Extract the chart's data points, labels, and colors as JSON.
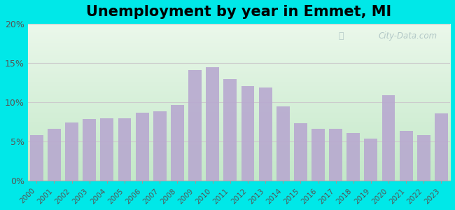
{
  "title": "Unemployment by year in Emmet, MI",
  "years": [
    2000,
    2001,
    2002,
    2003,
    2004,
    2005,
    2006,
    2007,
    2008,
    2009,
    2010,
    2011,
    2012,
    2013,
    2014,
    2015,
    2016,
    2017,
    2018,
    2019,
    2020,
    2021,
    2022,
    2023
  ],
  "values": [
    5.8,
    6.6,
    7.4,
    7.9,
    8.0,
    8.0,
    8.7,
    8.9,
    9.7,
    14.1,
    14.5,
    13.0,
    12.1,
    11.9,
    9.5,
    7.3,
    6.6,
    6.6,
    6.1,
    5.4,
    10.9,
    6.4,
    5.8,
    8.6
  ],
  "bar_color": "#b8a9d0",
  "background_outer": "#00e8e8",
  "yticks": [
    0,
    5,
    10,
    15,
    20
  ],
  "ylim": [
    0,
    20
  ],
  "title_fontsize": 15,
  "watermark": "City-Data.com",
  "grid_color": "#dddddd",
  "tick_label_color": "#555555"
}
